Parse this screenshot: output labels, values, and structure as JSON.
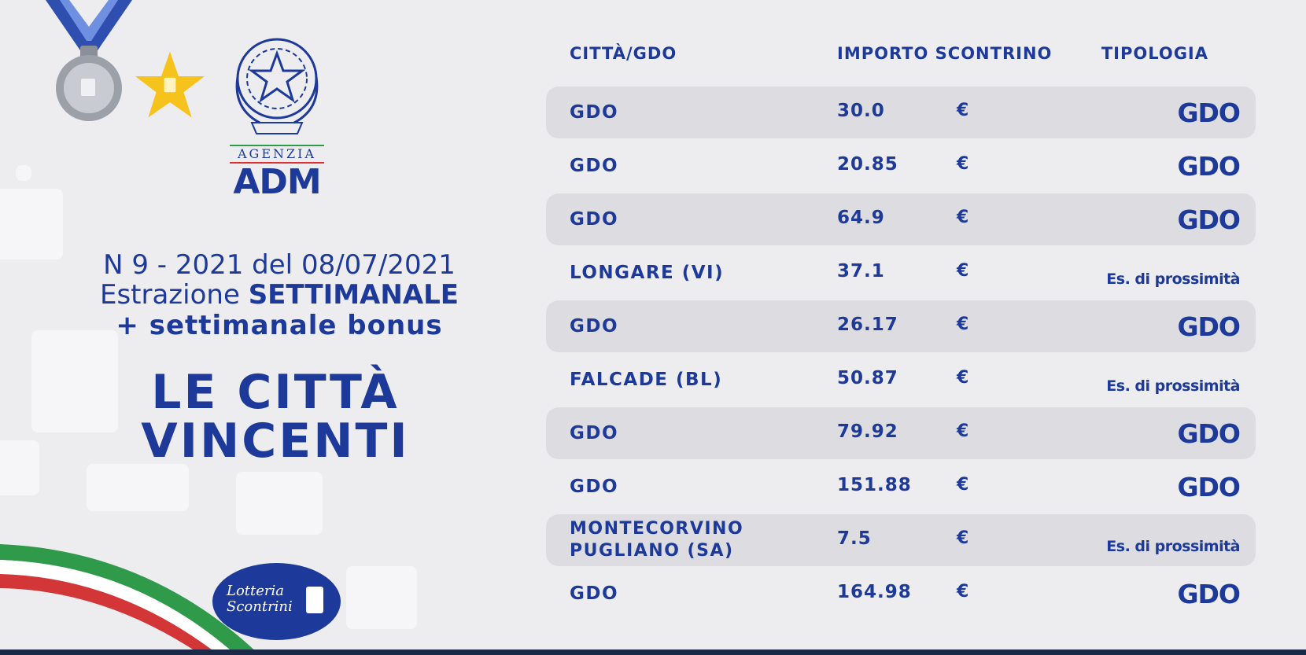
{
  "agency": {
    "label": "AGENZIA",
    "name": "ADM"
  },
  "draw": {
    "line1": "N 9 - 2021 del 08/07/2021",
    "line2_prefix": "Estrazione ",
    "line2_bold": "SETTIMANALE",
    "line3": "+ settimanale bonus"
  },
  "title": {
    "line1": "LE CITTÀ",
    "line2": "VINCENTI"
  },
  "lottery_logo": {
    "text": "Lotteria Scontrini"
  },
  "table": {
    "headers": {
      "city": "CITTÀ/GDO",
      "amount": "IMPORTO SCONTRINO",
      "type": "TIPOLOGIA"
    },
    "rows": [
      {
        "city": "GDO",
        "amount": "30.0",
        "currency": "€",
        "type": "GDO"
      },
      {
        "city": "GDO",
        "amount": "20.85",
        "currency": "€",
        "type": "GDO"
      },
      {
        "city": "GDO",
        "amount": "64.9",
        "currency": "€",
        "type": "GDO"
      },
      {
        "city": "LONGARE (VI)",
        "amount": "37.1",
        "currency": "€",
        "type": "Es. di prossimità"
      },
      {
        "city": "GDO",
        "amount": "26.17",
        "currency": "€",
        "type": "GDO"
      },
      {
        "city": "FALCADE (BL)",
        "amount": "50.87",
        "currency": "€",
        "type": "Es. di prossimità"
      },
      {
        "city": "GDO",
        "amount": "79.92",
        "currency": "€",
        "type": "GDO"
      },
      {
        "city": "GDO",
        "amount": "151.88",
        "currency": "€",
        "type": "GDO"
      },
      {
        "city": "MONTECORVINO PUGLIANO (SA)",
        "amount": "7.5",
        "currency": "€",
        "type": "Es. di prossimità"
      },
      {
        "city": "GDO",
        "amount": "164.98",
        "currency": "€",
        "type": "GDO"
      }
    ]
  },
  "colors": {
    "primary_blue": "#1d3a9a",
    "background": "#ededf0",
    "row_shade": "#dcdce1",
    "star_yellow": "#f6c21c"
  }
}
